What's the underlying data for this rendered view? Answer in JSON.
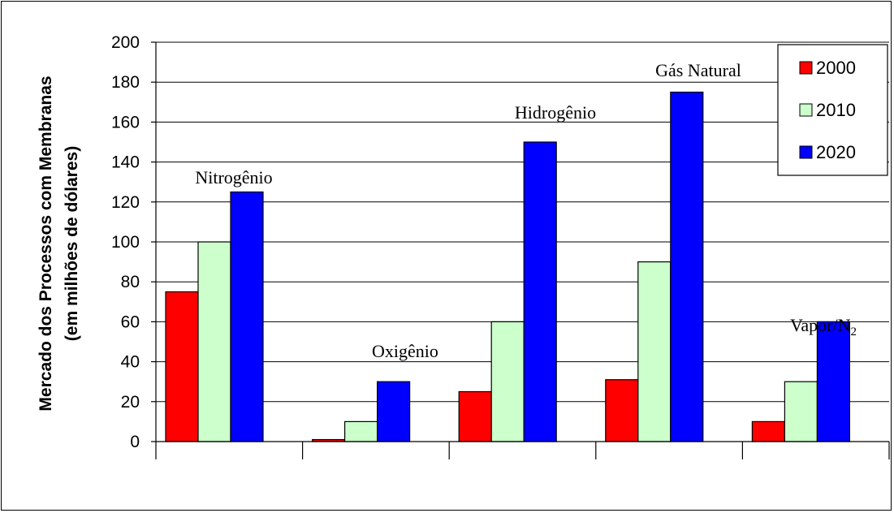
{
  "chart_data": {
    "type": "bar",
    "categories": [
      "Nitrogênio",
      "Oxigênio",
      "Hidrogênio",
      "Gás Natural",
      "Vapor/N2"
    ],
    "category_labels": [
      {
        "text": "Nitrogênio"
      },
      {
        "text": "Oxigênio"
      },
      {
        "text": "Hidrogênio"
      },
      {
        "text": "Gás Natural"
      },
      {
        "text": "Vapor/N",
        "sub": "2"
      }
    ],
    "series": [
      {
        "name": "2000",
        "color": "#ff0000",
        "values": [
          75,
          1,
          25,
          31,
          10
        ]
      },
      {
        "name": "2010",
        "color": "#ccffcc",
        "values": [
          100,
          10,
          60,
          90,
          30
        ]
      },
      {
        "name": "2020",
        "color": "#0000ff",
        "values": [
          125,
          30,
          150,
          175,
          60
        ]
      }
    ],
    "ylim": [
      0,
      200
    ],
    "yticks": [
      "0",
      "20",
      "40",
      "60",
      "80",
      "100",
      "120",
      "140",
      "160",
      "180",
      "200"
    ],
    "ylabel_line1": "Mercado dos Processos com Membranas",
    "ylabel_line2": "(em milhões de dólares)",
    "grid": true,
    "legend_position": "top-right"
  }
}
